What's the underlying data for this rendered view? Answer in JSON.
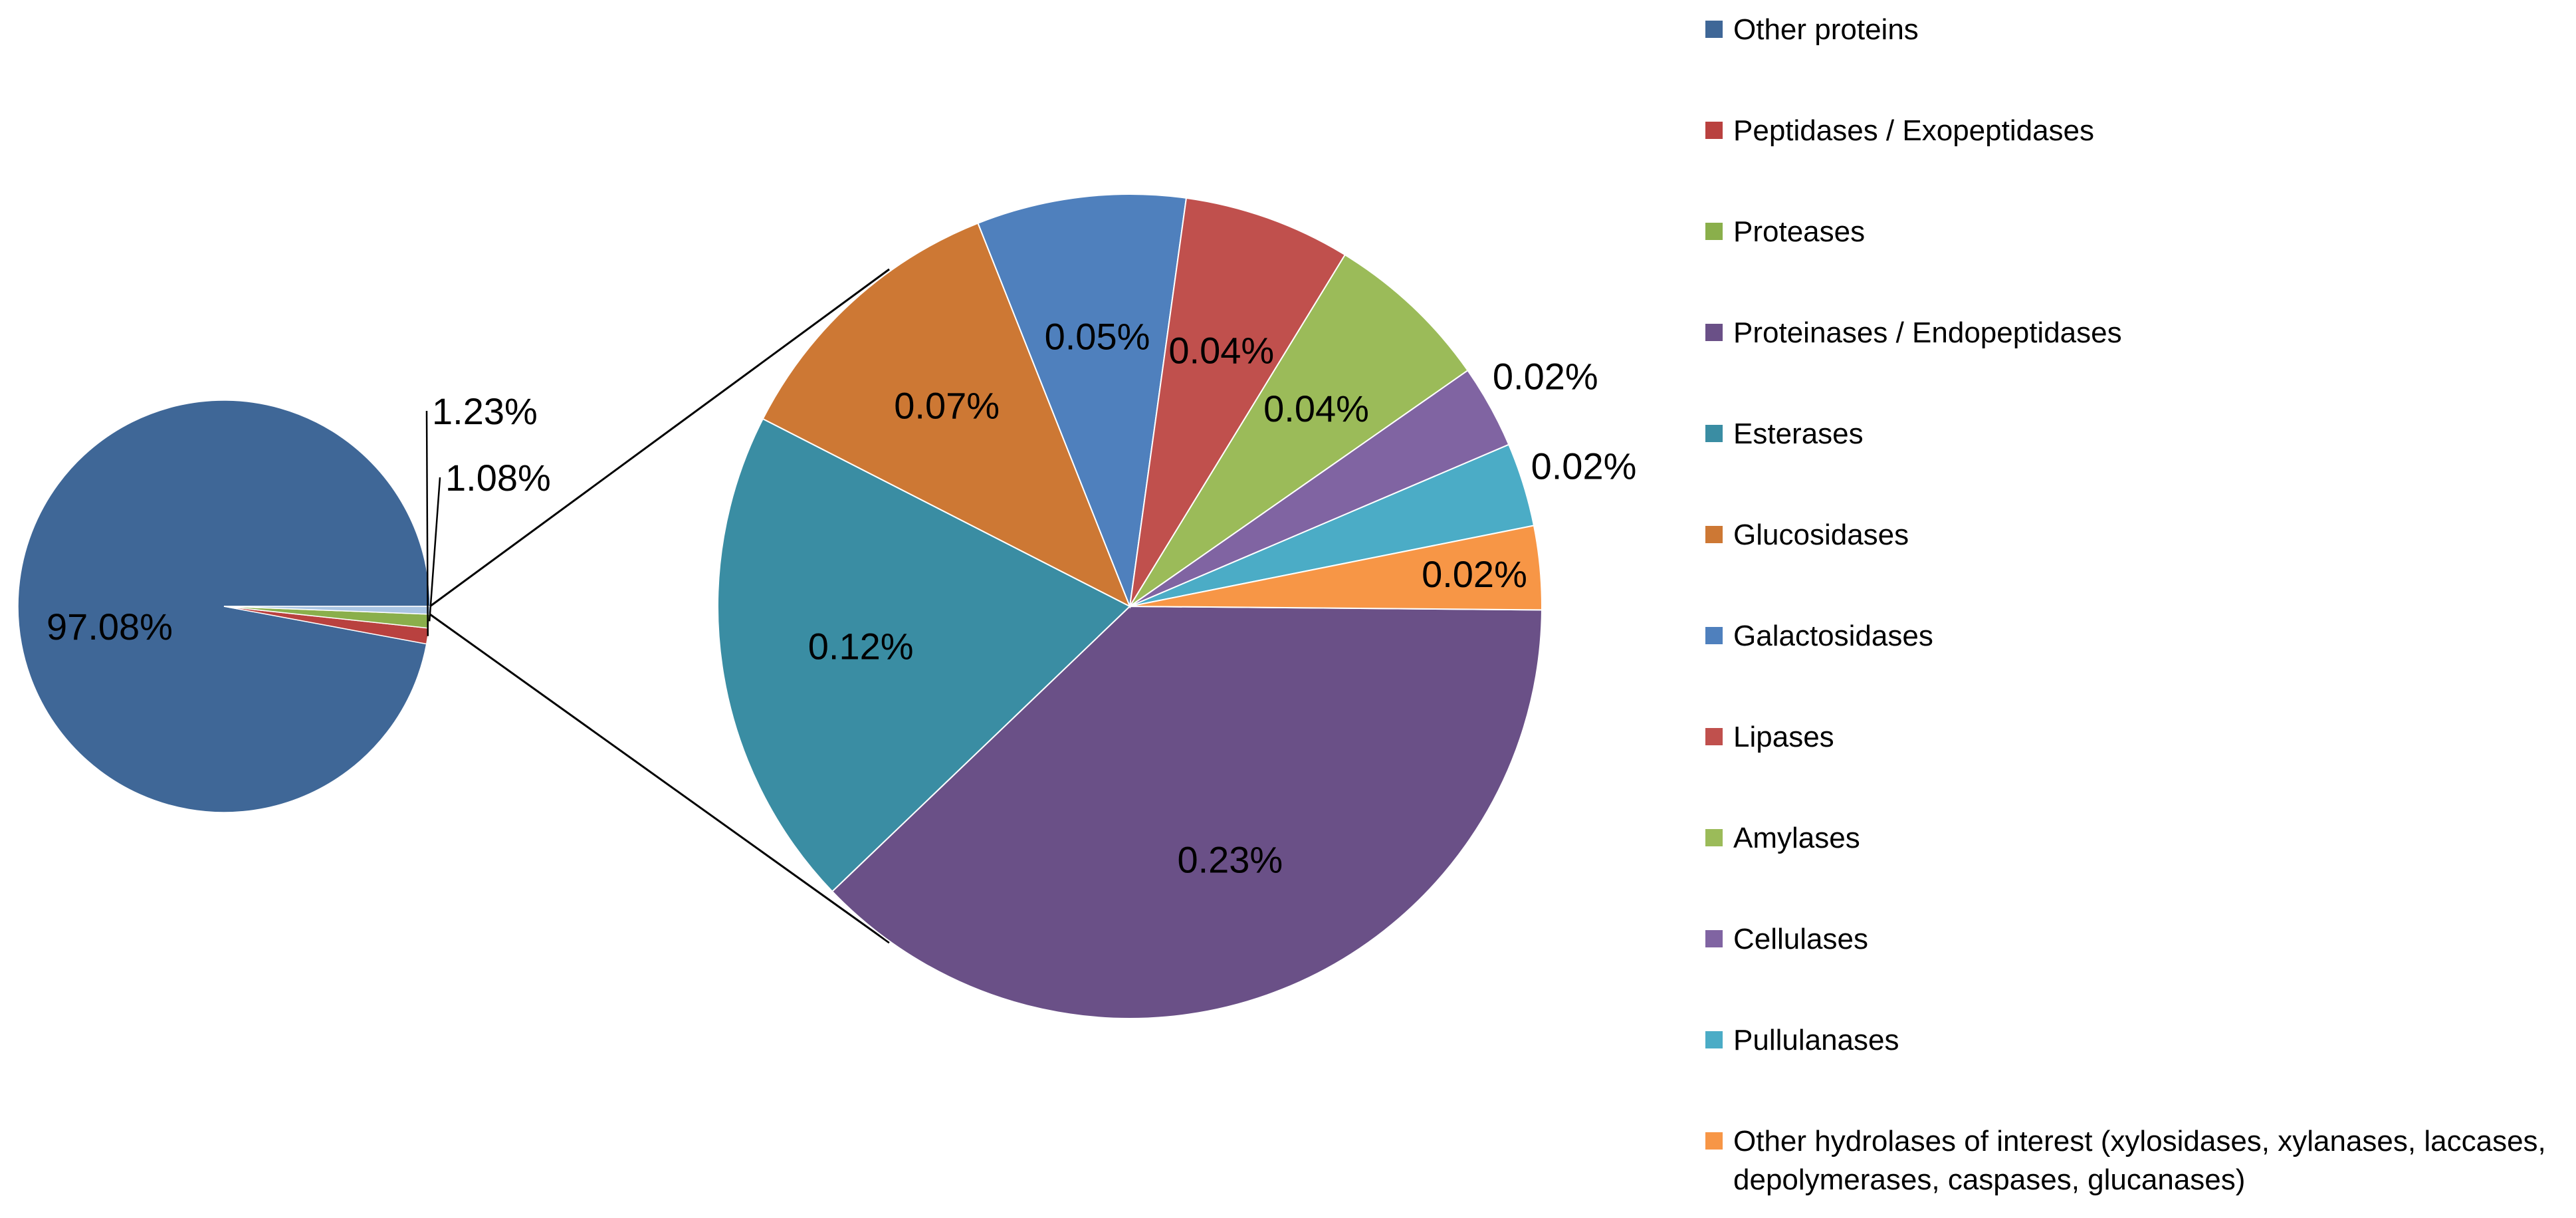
{
  "chart_data": {
    "type": "pie",
    "subtype": "pie-of-pie",
    "title": "",
    "main_pie": {
      "slices": [
        {
          "label": "97.08%",
          "value": 97.08,
          "color": "#3F6797"
        },
        {
          "label": "1.23%",
          "value": 1.23,
          "color": "#B9413F"
        },
        {
          "label": "1.08%",
          "value": 1.08,
          "color": "#8AAF4B"
        },
        {
          "label": "",
          "value": 0.61,
          "color": "#A9C4E2"
        }
      ]
    },
    "secondary_pie": {
      "slices": [
        {
          "label": "0.23%",
          "value": 0.23,
          "color": "#6A5087"
        },
        {
          "label": "0.12%",
          "value": 0.12,
          "color": "#3A8DA3"
        },
        {
          "label": "0.07%",
          "value": 0.07,
          "color": "#CD7834"
        },
        {
          "label": "0.05%",
          "value": 0.05,
          "color": "#4F80BD"
        },
        {
          "label": "0.04%",
          "value": 0.04,
          "color": "#C0504D"
        },
        {
          "label": "0.04%",
          "value": 0.04,
          "color": "#9BBB59"
        },
        {
          "label": "0.02%",
          "value": 0.02,
          "color": "#8064A2"
        },
        {
          "label": "0.02%",
          "value": 0.02,
          "color": "#4BACC6"
        },
        {
          "label": "0.02%",
          "value": 0.02,
          "color": "#F79646"
        }
      ]
    },
    "legend": {
      "position": "right",
      "entries": [
        {
          "name": "Other proteins",
          "color": "#3F6797"
        },
        {
          "name": "Peptidases / Exopeptidases",
          "color": "#B9413F"
        },
        {
          "name": "Proteases",
          "color": "#8AAF4B"
        },
        {
          "name": "Proteinases / Endopeptidases",
          "color": "#6A5087"
        },
        {
          "name": "Esterases",
          "color": "#3A8DA3"
        },
        {
          "name": "Glucosidases",
          "color": "#CD7834"
        },
        {
          "name": "Galactosidases",
          "color": "#4F80BD"
        },
        {
          "name": "Lipases",
          "color": "#C0504D"
        },
        {
          "name": "Amylases",
          "color": "#9BBB59"
        },
        {
          "name": "Cellulases",
          "color": "#8064A2"
        },
        {
          "name": "Pullulanases",
          "color": "#4BACC6"
        },
        {
          "name": "Other hydrolases of interest (xylosidases, xylanases, laccases,",
          "continuation": "depolymerases, caspases, glucanases)",
          "color": "#F79646"
        }
      ]
    }
  }
}
